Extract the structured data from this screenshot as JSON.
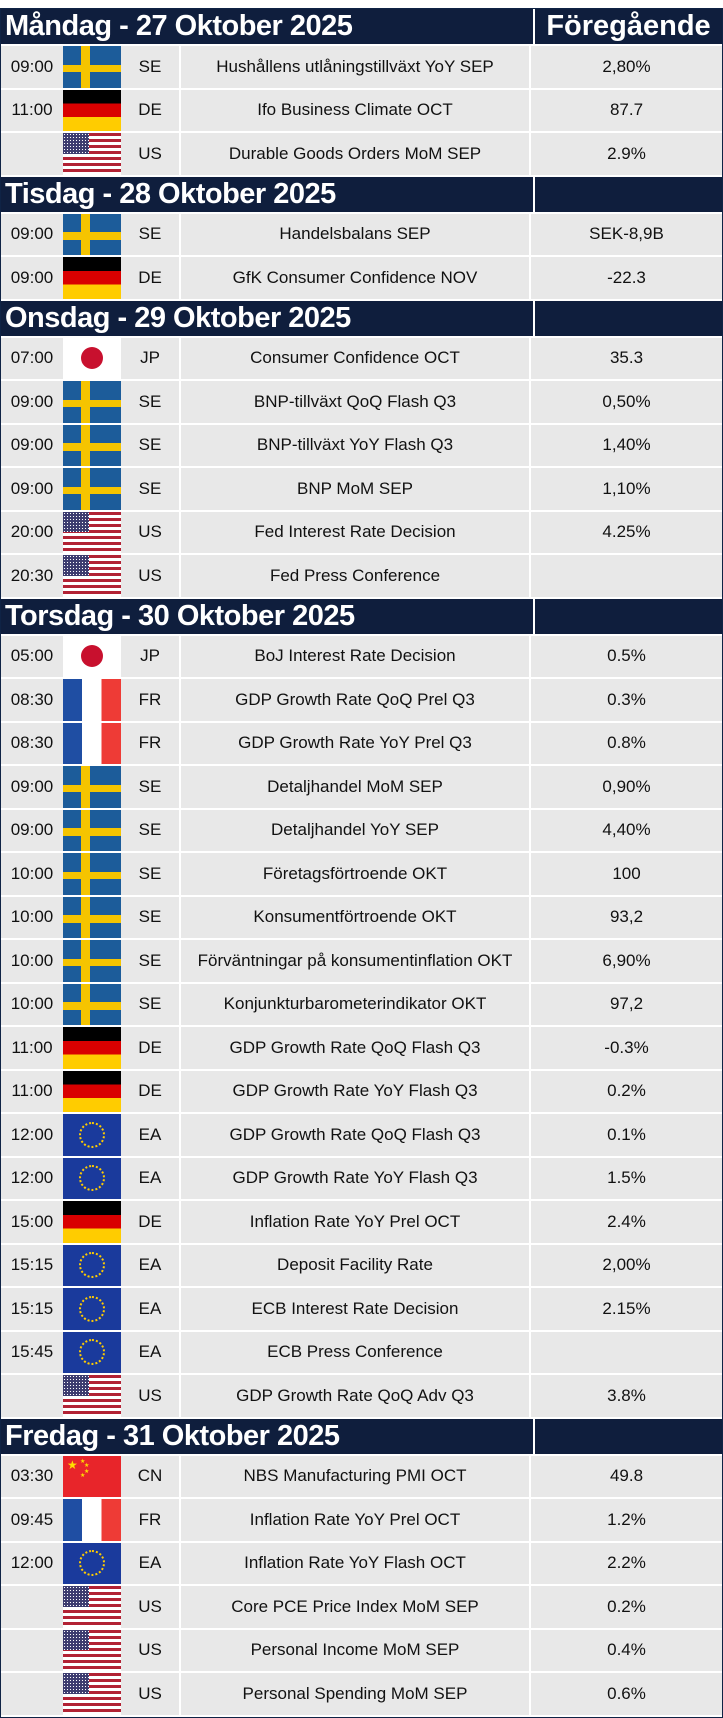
{
  "header": {
    "previous_label": "Föregående"
  },
  "days": [
    {
      "title": "Måndag - 27 Oktober 2025",
      "events": [
        {
          "time": "09:00",
          "flag": "se",
          "country": "SE",
          "event": "Hushållens utlåningstillväxt YoY SEP",
          "previous": "2,80%"
        },
        {
          "time": "11:00",
          "flag": "de",
          "country": "DE",
          "event": "Ifo Business Climate OCT",
          "previous": "87.7"
        },
        {
          "time": "",
          "flag": "us",
          "country": "US",
          "event": "Durable Goods Orders MoM SEP",
          "previous": "2.9%"
        }
      ]
    },
    {
      "title": "Tisdag - 28 Oktober 2025",
      "events": [
        {
          "time": "09:00",
          "flag": "se",
          "country": "SE",
          "event": "Handelsbalans SEP",
          "previous": "SEK-8,9B"
        },
        {
          "time": "09:00",
          "flag": "de",
          "country": "DE",
          "event": "GfK Consumer Confidence NOV",
          "previous": "-22.3"
        }
      ]
    },
    {
      "title": "Onsdag - 29 Oktober 2025",
      "events": [
        {
          "time": "07:00",
          "flag": "jp",
          "country": "JP",
          "event": "Consumer Confidence OCT",
          "previous": "35.3"
        },
        {
          "time": "09:00",
          "flag": "se",
          "country": "SE",
          "event": "BNP-tillväxt QoQ Flash Q3",
          "previous": "0,50%"
        },
        {
          "time": "09:00",
          "flag": "se",
          "country": "SE",
          "event": "BNP-tillväxt YoY Flash Q3",
          "previous": "1,40%"
        },
        {
          "time": "09:00",
          "flag": "se",
          "country": "SE",
          "event": "BNP MoM SEP",
          "previous": "1,10%"
        },
        {
          "time": "20:00",
          "flag": "us",
          "country": "US",
          "event": "Fed Interest Rate Decision",
          "previous": "4.25%"
        },
        {
          "time": "20:30",
          "flag": "us",
          "country": "US",
          "event": "Fed Press Conference",
          "previous": ""
        }
      ]
    },
    {
      "title": "Torsdag - 30 Oktober 2025",
      "events": [
        {
          "time": "05:00",
          "flag": "jp",
          "country": "JP",
          "event": "BoJ Interest Rate Decision",
          "previous": "0.5%"
        },
        {
          "time": "08:30",
          "flag": "fr",
          "country": "FR",
          "event": "GDP Growth Rate QoQ Prel Q3",
          "previous": "0.3%"
        },
        {
          "time": "08:30",
          "flag": "fr",
          "country": "FR",
          "event": "GDP Growth Rate YoY Prel Q3",
          "previous": "0.8%"
        },
        {
          "time": "09:00",
          "flag": "se",
          "country": "SE",
          "event": "Detaljhandel MoM SEP",
          "previous": "0,90%"
        },
        {
          "time": "09:00",
          "flag": "se",
          "country": "SE",
          "event": "Detaljhandel YoY SEP",
          "previous": "4,40%"
        },
        {
          "time": "10:00",
          "flag": "se",
          "country": "SE",
          "event": "Företagsförtroende OKT",
          "previous": "100"
        },
        {
          "time": "10:00",
          "flag": "se",
          "country": "SE",
          "event": "Konsumentförtroende OKT",
          "previous": "93,2"
        },
        {
          "time": "10:00",
          "flag": "se",
          "country": "SE",
          "event": "Förväntningar på konsumentinflation OKT",
          "previous": "6,90%"
        },
        {
          "time": "10:00",
          "flag": "se",
          "country": "SE",
          "event": "Konjunkturbarometerindikator OKT",
          "previous": "97,2"
        },
        {
          "time": "11:00",
          "flag": "de",
          "country": "DE",
          "event": "GDP Growth Rate QoQ Flash Q3",
          "previous": "-0.3%"
        },
        {
          "time": "11:00",
          "flag": "de",
          "country": "DE",
          "event": "GDP Growth Rate YoY Flash Q3",
          "previous": "0.2%"
        },
        {
          "time": "12:00",
          "flag": "ea",
          "country": "EA",
          "event": "GDP Growth Rate QoQ Flash Q3",
          "previous": "0.1%"
        },
        {
          "time": "12:00",
          "flag": "ea",
          "country": "EA",
          "event": "GDP Growth Rate YoY Flash Q3",
          "previous": "1.5%"
        },
        {
          "time": "15:00",
          "flag": "de",
          "country": "DE",
          "event": "Inflation Rate YoY Prel OCT",
          "previous": "2.4%"
        },
        {
          "time": "15:15",
          "flag": "ea",
          "country": "EA",
          "event": "Deposit Facility Rate",
          "previous": "2,00%"
        },
        {
          "time": "15:15",
          "flag": "ea",
          "country": "EA",
          "event": "ECB Interest Rate Decision",
          "previous": "2.15%"
        },
        {
          "time": "15:45",
          "flag": "ea",
          "country": "EA",
          "event": "ECB Press Conference",
          "previous": ""
        },
        {
          "time": "",
          "flag": "us",
          "country": "US",
          "event": "GDP Growth Rate QoQ Adv Q3",
          "previous": "3.8%"
        }
      ]
    },
    {
      "title": "Fredag - 31 Oktober 2025",
      "events": [
        {
          "time": "03:30",
          "flag": "cn",
          "country": "CN",
          "event": "NBS Manufacturing PMI OCT",
          "previous": "49.8"
        },
        {
          "time": "09:45",
          "flag": "fr",
          "country": "FR",
          "event": "Inflation Rate YoY Prel OCT",
          "previous": "1.2%"
        },
        {
          "time": "12:00",
          "flag": "ea",
          "country": "EA",
          "event": "Inflation Rate YoY Flash OCT",
          "previous": "2.2%"
        },
        {
          "time": "",
          "flag": "us",
          "country": "US",
          "event": "Core PCE Price Index MoM SEP",
          "previous": "0.2%"
        },
        {
          "time": "",
          "flag": "us",
          "country": "US",
          "event": "Personal Income MoM SEP",
          "previous": "0.4%"
        },
        {
          "time": "",
          "flag": "us",
          "country": "US",
          "event": "Personal Spending MoM SEP",
          "previous": "0.6%"
        }
      ]
    }
  ]
}
